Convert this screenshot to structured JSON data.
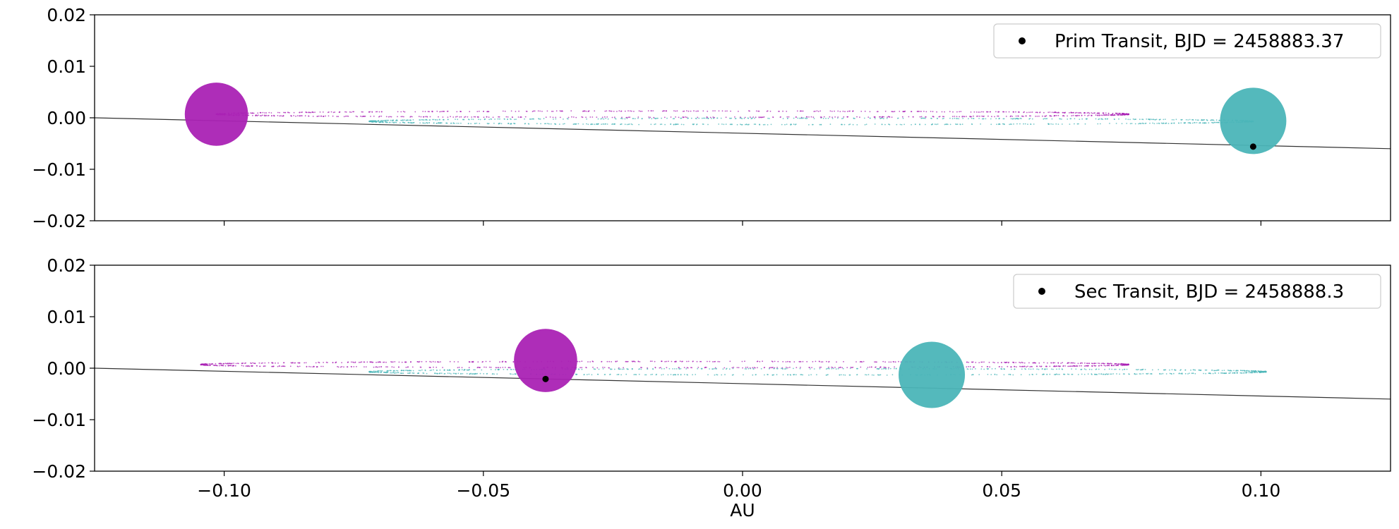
{
  "chart_data": [
    {
      "type": "scatter",
      "xlim": [
        -0.125,
        0.125
      ],
      "ylim": [
        -0.02,
        0.02
      ],
      "yticks": [
        "0.02",
        "0.01",
        "0.00",
        "−0.01",
        "−0.02"
      ],
      "xticks": [],
      "xlabel": "",
      "ylabel": "",
      "legend_position": "top-right",
      "legend": {
        "label": "Prim Transit, BJD = 2458883.37",
        "marker_color": "#000000"
      },
      "colors": {
        "star1": "#aa22b4",
        "star2": "#4bb5b8",
        "line": "#333333"
      },
      "line_of_sight": {
        "x": [
          -0.125,
          0.125
        ],
        "y": [
          0.0,
          -0.006
        ]
      },
      "star1": {
        "x": -0.1015,
        "y": 0.0007,
        "radius_au": 0.0061
      },
      "star2": {
        "x": 0.0985,
        "y": -0.0006,
        "radius_au": 0.0064
      },
      "transit_point": {
        "x": 0.0985,
        "y": -0.0056
      },
      "orbit1": {
        "x_min": -0.1015,
        "x_max": 0.0745,
        "y_center": 0.0007,
        "half_width": 0.0006
      },
      "orbit2": {
        "x_min": -0.072,
        "x_max": 0.0985,
        "y_center": -0.0007,
        "half_width": 0.0006
      }
    },
    {
      "type": "scatter",
      "xlim": [
        -0.125,
        0.125
      ],
      "ylim": [
        -0.02,
        0.02
      ],
      "yticks": [
        "0.02",
        "0.01",
        "0.00",
        "−0.01",
        "−0.02"
      ],
      "xticks": [
        "−0.10",
        "−0.05",
        "0.00",
        "0.05",
        "0.10"
      ],
      "xtick_values": [
        -0.1,
        -0.05,
        0.0,
        0.05,
        0.1
      ],
      "xlabel": "AU",
      "ylabel": "",
      "legend_position": "top-right",
      "legend": {
        "label": "Sec Transit, BJD = 2458888.3",
        "marker_color": "#000000"
      },
      "colors": {
        "star1": "#aa22b4",
        "star2": "#4bb5b8",
        "line": "#333333"
      },
      "line_of_sight": {
        "x": [
          -0.125,
          0.125
        ],
        "y": [
          0.0,
          -0.006
        ]
      },
      "star1": {
        "x": -0.038,
        "y": 0.0015,
        "radius_au": 0.0061
      },
      "star2": {
        "x": 0.0365,
        "y": -0.0013,
        "radius_au": 0.0064
      },
      "transit_point": {
        "x": -0.038,
        "y": -0.0021
      },
      "orbit1": {
        "x_min": -0.1045,
        "x_max": 0.0745,
        "y_center": 0.0007,
        "half_width": 0.0006
      },
      "orbit2": {
        "x_min": -0.072,
        "x_max": 0.101,
        "y_center": -0.0007,
        "half_width": 0.0006
      }
    }
  ]
}
